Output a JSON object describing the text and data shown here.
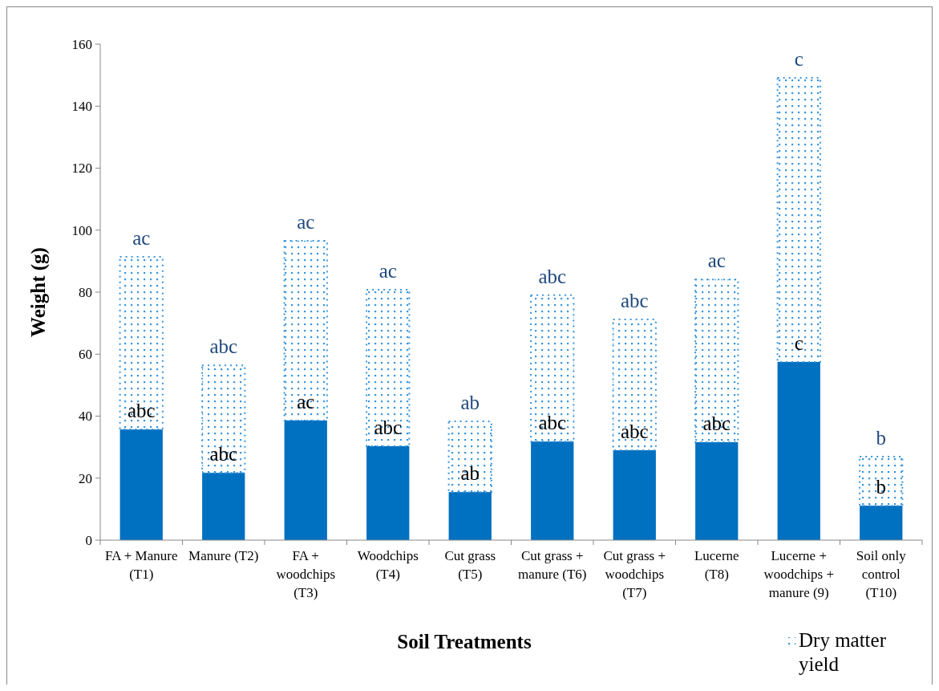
{
  "chart_data": {
    "type": "bar",
    "stacked": true,
    "xlabel": "Soil Treatments",
    "ylabel": "Weight (g)",
    "categories": [
      "FA + Manure (T1)",
      "Manure (T2)",
      "FA + woodchips (T3)",
      "Woodchips (T4)",
      "Cut grass (T5)",
      "Cut grass + manure (T6)",
      "Cut grass + woodchips (T7)",
      "Lucerne (T8)",
      "Lucerne + woodchips + manure (9)",
      "Soil only control (T10)"
    ],
    "series": [
      {
        "color": "#0070c0",
        "values": [
          35.7,
          21.7,
          38.6,
          30.3,
          15.5,
          31.8,
          29.0,
          31.6,
          57.5,
          11.1
        ]
      },
      {
        "name": "Dry matter yield",
        "color": "#3a96dc",
        "values": [
          55.7,
          34.7,
          58.0,
          50.5,
          22.8,
          47.2,
          42.2,
          52.5,
          91.6,
          15.8
        ]
      }
    ],
    "ylim": [
      0,
      160
    ],
    "yticks": [
      0,
      20,
      40,
      60,
      80,
      100,
      120,
      140,
      160
    ],
    "grid": false,
    "legend": "bottom right",
    "annotations": [
      {
        "text": "abc",
        "x": "FA + Manure (T1)",
        "y": 35.7
      },
      {
        "text": "abc",
        "x": "Manure (T2)",
        "y": 21.7
      },
      {
        "text": "ac",
        "x": "FA + woodchips (T3)",
        "y": 38.6
      },
      {
        "text": "abc",
        "x": "Woodchips (T4)",
        "y": 30.3
      },
      {
        "text": "ab",
        "x": "Cut grass (T5)",
        "y": 15.5
      },
      {
        "text": "abc",
        "x": "Cut grass + manure (T6)",
        "y": 31.8
      },
      {
        "text": "abc",
        "x": "Cut grass + woodchips (T7)",
        "y": 29.0
      },
      {
        "text": "abc",
        "x": "Lucerne (T8)",
        "y": 31.6
      },
      {
        "text": "c",
        "x": "Lucerne + woodchips + manure (9)",
        "y": 57.5
      },
      {
        "text": "b",
        "x": "Soil only control (T10)",
        "y": 11.1
      },
      {
        "text": "ac",
        "x": "FA + Manure (T1)",
        "y": 91.4
      },
      {
        "text": "abc",
        "x": "Manure (T2)",
        "y": 56.4
      },
      {
        "text": "ac",
        "x": "FA + woodchips (T3)",
        "y": 96.6
      },
      {
        "text": "ac",
        "x": "Woodchips (T4)",
        "y": 80.8
      },
      {
        "text": "ab",
        "x": "Cut grass (T5)",
        "y": 38.3
      },
      {
        "text": "abc",
        "x": "Cut grass + manure (T6)",
        "y": 79.0
      },
      {
        "text": "abc",
        "x": "Cut grass + woodchips (T7)",
        "y": 71.2
      },
      {
        "text": "ac",
        "x": "Lucerne (T8)",
        "y": 84.1
      },
      {
        "text": "c",
        "x": "Lucerne + woodchips + manure (9)",
        "y": 149.1
      },
      {
        "text": "b",
        "x": "Soil only control (T10)",
        "y": 26.9
      }
    ]
  }
}
